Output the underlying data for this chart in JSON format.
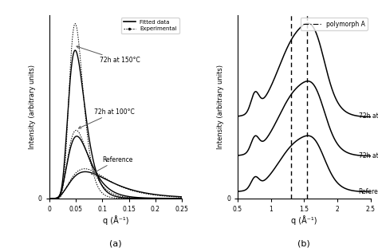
{
  "panel_a": {
    "xlabel": "q (Å⁻¹)",
    "ylabel": "Intensity (arbitrary units)",
    "caption": "(a)",
    "xlim": [
      0,
      0.25
    ],
    "xticks": [
      0,
      0.05,
      0.1,
      0.15,
      0.2,
      0.25
    ],
    "xticklabels": [
      "0",
      "0.05",
      "0.1",
      "0.15",
      "0.2",
      "0.25"
    ]
  },
  "panel_b": {
    "xlabel": "q (Å⁻¹)",
    "ylabel": "Intensity (arbitrary units)",
    "caption": "(b)",
    "xlim": [
      0.5,
      2.5
    ],
    "xticks": [
      0.5,
      1.0,
      1.5,
      2.0,
      2.5
    ],
    "xticklabels": [
      "0.5",
      "1",
      "1.5",
      "2",
      "2.5"
    ],
    "vlines": [
      1.3,
      1.55
    ],
    "legend_entry": "polymorph A"
  }
}
